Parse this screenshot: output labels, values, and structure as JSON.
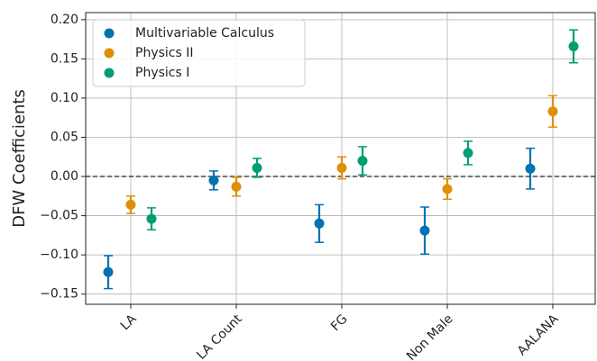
{
  "chart_data": {
    "type": "errorbar",
    "ylabel": "DFW Coefficients",
    "categories": [
      "LA",
      "LA Count",
      "FG",
      "Non Male",
      "AALANA"
    ],
    "series": [
      {
        "name": "Multivariable Calculus",
        "color": "#0173b2",
        "values": [
          -0.122,
          -0.005,
          -0.06,
          -0.069,
          0.01
        ],
        "errors": [
          0.021,
          0.012,
          0.024,
          0.03,
          0.026
        ]
      },
      {
        "name": "Physics II",
        "color": "#de8f05",
        "values": [
          -0.036,
          -0.013,
          0.011,
          -0.016,
          0.083
        ],
        "errors": [
          0.011,
          0.012,
          0.014,
          0.013,
          0.02
        ]
      },
      {
        "name": "Physics I",
        "color": "#029e73",
        "values": [
          -0.054,
          0.011,
          0.02,
          0.03,
          0.166
        ],
        "errors": [
          0.014,
          0.012,
          0.018,
          0.015,
          0.021
        ]
      }
    ],
    "ylim": [
      -0.163,
      0.209
    ],
    "yticks": [
      {
        "value": -0.15,
        "label": "−0.15"
      },
      {
        "value": -0.1,
        "label": "−0.10"
      },
      {
        "value": -0.05,
        "label": "−0.05"
      },
      {
        "value": 0,
        "label": "0.00"
      },
      {
        "value": 0.05,
        "label": "0.05"
      },
      {
        "value": 0.1,
        "label": "0.10"
      },
      {
        "value": 0.15,
        "label": "0.15"
      },
      {
        "value": 0.2,
        "label": "0.20"
      }
    ],
    "reference_line": 0,
    "grid": true,
    "legend": "upper left"
  }
}
